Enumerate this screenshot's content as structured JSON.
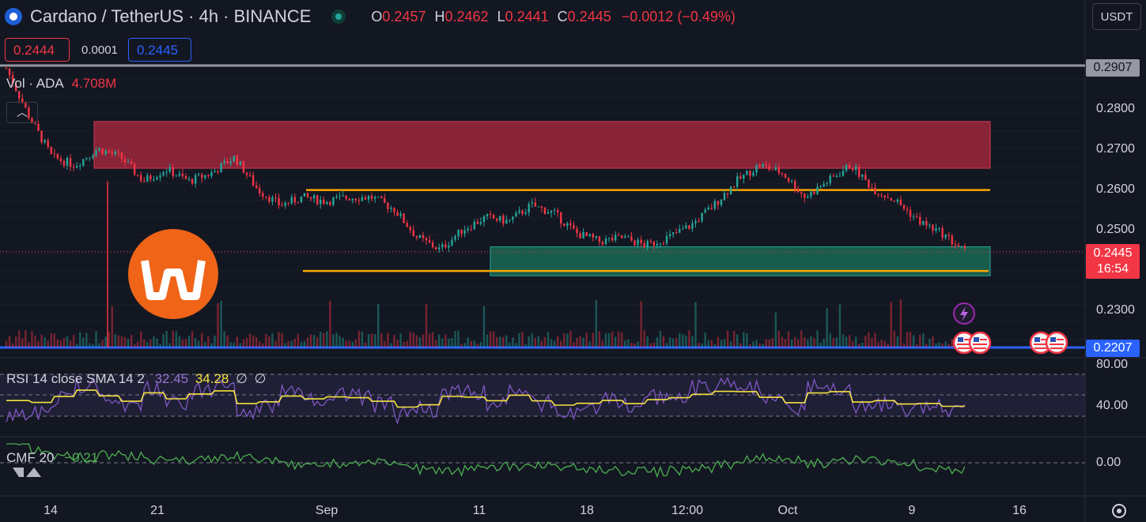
{
  "header": {
    "title": "Cardano / TetherUS · 4h · BINANCE",
    "ohlc": [
      {
        "key": "O",
        "value": "0.2457"
      },
      {
        "key": "H",
        "value": "0.2462"
      },
      {
        "key": "L",
        "value": "0.2441"
      },
      {
        "key": "C",
        "value": "0.2445"
      }
    ],
    "change": "−0.0012 (−0.49%)"
  },
  "trade": {
    "sell": "0.2444",
    "spread": "0.0001",
    "buy": "0.2445"
  },
  "currency_button": "USDT",
  "volume": {
    "label": "Vol · ADA",
    "value": "4.708M"
  },
  "collapse_icon": "chevron-up-icon",
  "rsi": {
    "label": "RSI 14 close SMA 14 2",
    "value1": "32.45",
    "value2": "34.28",
    "na1": "∅",
    "na2": "∅"
  },
  "cmf": {
    "label": "CMF 20",
    "value": "−0.21"
  },
  "price_tags": {
    "top_line": "0.2907",
    "last_price": "0.2445",
    "countdown": "16:54",
    "bottom_line": "0.2207"
  },
  "icons": [
    "lightning-icon",
    "us-flag-icon",
    "settings-icon",
    "coin-logo"
  ],
  "colors": {
    "background": "#131722",
    "bull": "#26a69a",
    "bear": "#f23645",
    "resistance_zone": "#b2283f",
    "support_zone": "#1b7a5e",
    "level_line": "#f7a600",
    "blue_line": "#2962ff",
    "gray_line": "#9598a1",
    "rsi_line": "#7e57c2",
    "rsi_sma": "#f5e342",
    "cmf_line": "#4caf50"
  },
  "chart_data": {
    "type": "candlestick",
    "symbol": "ADAUSDT",
    "timeframe": "4h",
    "y_ticks": [
      "0.2800",
      "0.2700",
      "0.2600",
      "0.2500",
      "0.2300"
    ],
    "y_range": [
      0.2207,
      0.2907
    ],
    "x_ticks": [
      "14",
      "21",
      "Sep",
      "11",
      "18",
      "12:00",
      "Oct",
      "9",
      "16"
    ],
    "approx_closes": [
      0.29,
      0.278,
      0.268,
      0.266,
      0.27,
      0.268,
      0.262,
      0.265,
      0.262,
      0.264,
      0.268,
      0.26,
      0.256,
      0.258,
      0.257,
      0.258,
      0.258,
      0.255,
      0.248,
      0.245,
      0.25,
      0.253,
      0.252,
      0.256,
      0.254,
      0.249,
      0.247,
      0.248,
      0.246,
      0.248,
      0.251,
      0.256,
      0.262,
      0.266,
      0.264,
      0.258,
      0.262,
      0.266,
      0.26,
      0.257,
      0.252,
      0.249,
      0.2445
    ],
    "horizontal_lines": [
      {
        "price": 0.2907,
        "color": "gray"
      },
      {
        "price": 0.2207,
        "color": "blue"
      },
      {
        "price": 0.2598,
        "color": "orange"
      },
      {
        "price": 0.2397,
        "color": "orange"
      }
    ],
    "zones": [
      {
        "kind": "resistance",
        "from": 0.2652,
        "to": 0.2768
      },
      {
        "kind": "support",
        "from": 0.2385,
        "to": 0.2457
      }
    ],
    "rsi": {
      "levels": [
        30,
        50,
        70
      ],
      "ticks": [
        "80.00",
        "40.00"
      ],
      "last_value": 32.45,
      "sma_value": 34.28
    },
    "cmf": {
      "ticks": [
        "0.00"
      ],
      "last_value": -0.21
    }
  }
}
